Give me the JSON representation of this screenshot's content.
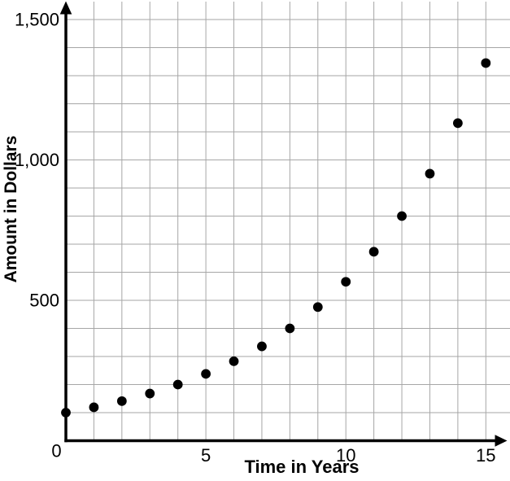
{
  "chart_data": {
    "type": "scatter",
    "title": "",
    "xlabel": "Time in Years",
    "ylabel": "Amount in Dollars",
    "x": [
      0,
      1,
      2,
      3,
      4,
      5,
      6,
      7,
      8,
      9,
      10,
      11,
      12,
      13,
      14,
      15
    ],
    "y": [
      100,
      119,
      141,
      168,
      200,
      238,
      283,
      336,
      400,
      476,
      566,
      673,
      800,
      951,
      1131,
      1345
    ],
    "xlim": [
      0,
      15.9
    ],
    "ylim": [
      0,
      1570
    ],
    "x_ticks": [
      {
        "value": 0,
        "label": "0"
      },
      {
        "value": 5,
        "label": "5"
      },
      {
        "value": 10,
        "label": "10"
      },
      {
        "value": 15,
        "label": "15"
      }
    ],
    "y_ticks": [
      {
        "value": 500,
        "label": "500"
      },
      {
        "value": 1000,
        "label": "1,000"
      },
      {
        "value": 1500,
        "label": "1,500"
      }
    ],
    "grid": {
      "show": true,
      "x_step_years": 1,
      "y_step_dollars": 100,
      "color": "#a6a6a6"
    },
    "styles": {
      "point_color": "#000000",
      "axis_color": "#000000",
      "tick_label_color": "#000000",
      "background": "#ffffff"
    },
    "legend": null
  }
}
